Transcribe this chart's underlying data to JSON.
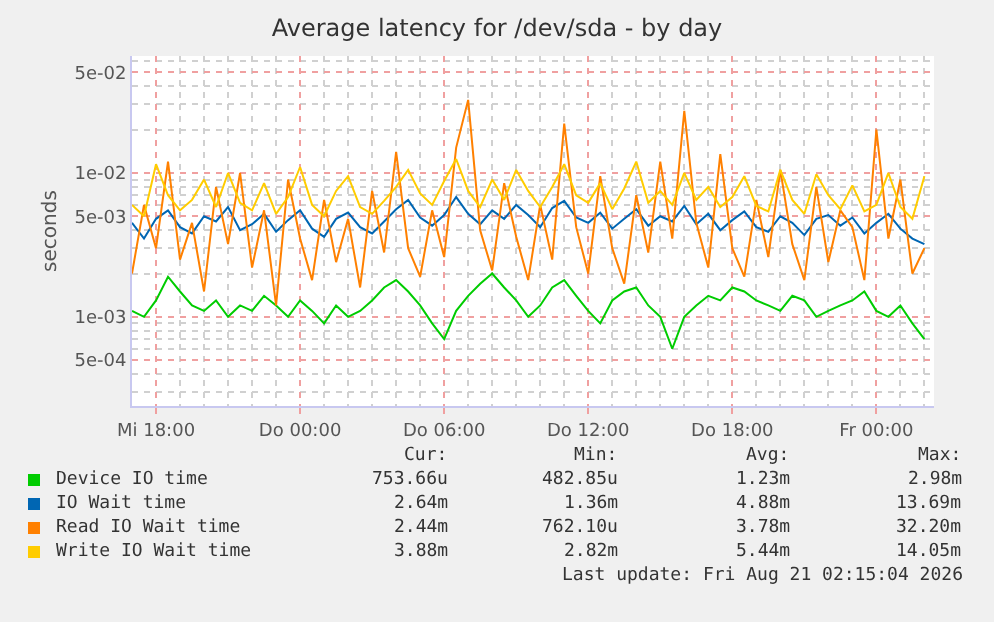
{
  "chart_data": {
    "type": "line",
    "title": "Average latency for /dev/sda - by day",
    "ylabel": "seconds",
    "log": "y",
    "grid": true,
    "legend": "bottom left",
    "marker": "none",
    "line_style": "solid",
    "x": [
      "2026-08-19T17:00",
      "2026-08-19T17:30",
      "2026-08-19T18:00",
      "2026-08-19T18:30",
      "2026-08-19T19:00",
      "2026-08-19T19:30",
      "2026-08-19T20:00",
      "2026-08-19T20:30",
      "2026-08-19T21:00",
      "2026-08-19T21:30",
      "2026-08-19T22:00",
      "2026-08-19T22:30",
      "2026-08-19T23:00",
      "2026-08-19T23:30",
      "2026-08-20T00:00",
      "2026-08-20T00:30",
      "2026-08-20T01:00",
      "2026-08-20T01:30",
      "2026-08-20T02:00",
      "2026-08-20T02:30",
      "2026-08-20T03:00",
      "2026-08-20T03:30",
      "2026-08-20T04:00",
      "2026-08-20T04:30",
      "2026-08-20T05:00",
      "2026-08-20T05:30",
      "2026-08-20T06:00",
      "2026-08-20T06:30",
      "2026-08-20T07:00",
      "2026-08-20T07:30",
      "2026-08-20T08:00",
      "2026-08-20T08:30",
      "2026-08-20T09:00",
      "2026-08-20T09:30",
      "2026-08-20T10:00",
      "2026-08-20T10:30",
      "2026-08-20T11:00",
      "2026-08-20T11:30",
      "2026-08-20T12:00",
      "2026-08-20T12:30",
      "2026-08-20T13:00",
      "2026-08-20T13:30",
      "2026-08-20T14:00",
      "2026-08-20T14:30",
      "2026-08-20T15:00",
      "2026-08-20T15:30",
      "2026-08-20T16:00",
      "2026-08-20T16:30",
      "2026-08-20T17:00",
      "2026-08-20T17:30",
      "2026-08-20T18:00",
      "2026-08-20T18:30",
      "2026-08-20T19:00",
      "2026-08-20T19:30",
      "2026-08-20T20:00",
      "2026-08-20T20:30",
      "2026-08-20T21:00",
      "2026-08-20T21:30",
      "2026-08-20T22:00",
      "2026-08-20T22:30",
      "2026-08-20T23:00",
      "2026-08-20T23:30",
      "2026-08-21T00:00",
      "2026-08-21T00:30",
      "2026-08-21T01:00",
      "2026-08-21T01:30",
      "2026-08-21T02:00"
    ],
    "xlim": [
      "2026-08-19T17:00",
      "2026-08-21T02:24"
    ],
    "xticks": [
      {
        "value": "2026-08-19T18:00",
        "label": "Mi 18:00"
      },
      {
        "value": "2026-08-20T00:00",
        "label": "Do 00:00"
      },
      {
        "value": "2026-08-20T06:00",
        "label": "Do 06:00"
      },
      {
        "value": "2026-08-20T12:00",
        "label": "Do 12:00"
      },
      {
        "value": "2026-08-20T18:00",
        "label": "Do 18:00"
      },
      {
        "value": "2026-08-21T00:00",
        "label": "Fr 00:00"
      }
    ],
    "ylim": [
      0.00024,
      0.065
    ],
    "yticks": [
      {
        "value": 0.0005,
        "label": "5e-04"
      },
      {
        "value": 0.001,
        "label": "1e-03"
      },
      {
        "value": 0.005,
        "label": "5e-03"
      },
      {
        "value": 0.01,
        "label": "1e-02"
      },
      {
        "value": 0.05,
        "label": "5e-02"
      }
    ],
    "series": [
      {
        "name": "Device IO time",
        "color": "#00cc00",
        "values": [
          0.0011,
          0.001,
          0.0013,
          0.0019,
          0.0015,
          0.0012,
          0.0011,
          0.0013,
          0.001,
          0.0012,
          0.0011,
          0.0014,
          0.0012,
          0.001,
          0.0013,
          0.0011,
          0.0009,
          0.0012,
          0.001,
          0.0011,
          0.0013,
          0.0016,
          0.0018,
          0.0015,
          0.0012,
          0.0009,
          0.0007,
          0.0011,
          0.0014,
          0.0017,
          0.002,
          0.0016,
          0.0013,
          0.001,
          0.0012,
          0.0016,
          0.0018,
          0.0014,
          0.0011,
          0.0009,
          0.0013,
          0.0015,
          0.0016,
          0.0012,
          0.001,
          0.0006,
          0.001,
          0.0012,
          0.0014,
          0.0013,
          0.0016,
          0.0015,
          0.0013,
          0.0012,
          0.0011,
          0.0014,
          0.0013,
          0.001,
          0.0011,
          0.0012,
          0.0013,
          0.0015,
          0.0011,
          0.001,
          0.0012,
          0.0009,
          0.0007
        ]
      },
      {
        "name": "IO Wait time",
        "color": "#0066b3",
        "values": [
          0.0045,
          0.0035,
          0.0048,
          0.0055,
          0.0042,
          0.0038,
          0.005,
          0.0046,
          0.0058,
          0.004,
          0.0044,
          0.0052,
          0.0039,
          0.0047,
          0.0055,
          0.0041,
          0.0036,
          0.0048,
          0.0053,
          0.0042,
          0.0038,
          0.0046,
          0.0056,
          0.0065,
          0.0049,
          0.0043,
          0.0051,
          0.0068,
          0.0052,
          0.0044,
          0.0055,
          0.0048,
          0.006,
          0.0051,
          0.0042,
          0.0057,
          0.0064,
          0.0049,
          0.0045,
          0.0053,
          0.0041,
          0.0048,
          0.0056,
          0.0043,
          0.005,
          0.0046,
          0.0059,
          0.0044,
          0.0052,
          0.004,
          0.0047,
          0.0054,
          0.0042,
          0.0039,
          0.005,
          0.0045,
          0.0037,
          0.0048,
          0.0051,
          0.0043,
          0.0049,
          0.0038,
          0.0045,
          0.0052,
          0.0041,
          0.0035,
          0.0032
        ]
      },
      {
        "name": "Read IO Wait time",
        "color": "#ff8000",
        "values": [
          0.002,
          0.006,
          0.003,
          0.012,
          0.0025,
          0.0045,
          0.0015,
          0.008,
          0.0032,
          0.01,
          0.0022,
          0.0055,
          0.0012,
          0.009,
          0.0035,
          0.0018,
          0.0065,
          0.0024,
          0.0048,
          0.0016,
          0.0075,
          0.0028,
          0.014,
          0.003,
          0.0019,
          0.0055,
          0.0026,
          0.015,
          0.0322,
          0.004,
          0.0021,
          0.0085,
          0.0036,
          0.0018,
          0.006,
          0.0025,
          0.022,
          0.0042,
          0.002,
          0.0095,
          0.003,
          0.0017,
          0.007,
          0.0028,
          0.012,
          0.0035,
          0.027,
          0.0045,
          0.0022,
          0.0135,
          0.003,
          0.0019,
          0.0065,
          0.0026,
          0.0105,
          0.0032,
          0.0018,
          0.008,
          0.0024,
          0.0055,
          0.0042,
          0.0018,
          0.02,
          0.0035,
          0.009,
          0.002,
          0.003
        ]
      },
      {
        "name": "Write IO Wait time",
        "color": "#ffcc00",
        "values": [
          0.006,
          0.005,
          0.0115,
          0.007,
          0.0055,
          0.0065,
          0.009,
          0.0058,
          0.01,
          0.0062,
          0.0055,
          0.0085,
          0.0052,
          0.0068,
          0.011,
          0.006,
          0.005,
          0.0075,
          0.0095,
          0.0058,
          0.0052,
          0.0064,
          0.008,
          0.0105,
          0.0072,
          0.006,
          0.0088,
          0.0125,
          0.0075,
          0.0058,
          0.009,
          0.0065,
          0.0105,
          0.0075,
          0.0058,
          0.008,
          0.0115,
          0.007,
          0.0062,
          0.0085,
          0.0056,
          0.0078,
          0.012,
          0.0062,
          0.0075,
          0.006,
          0.01,
          0.0065,
          0.008,
          0.0058,
          0.0068,
          0.0095,
          0.0059,
          0.0054,
          0.0105,
          0.0065,
          0.0052,
          0.0098,
          0.007,
          0.0056,
          0.0082,
          0.0054,
          0.006,
          0.01,
          0.0058,
          0.0048,
          0.0095
        ]
      }
    ],
    "annotations": [
      "Cur:",
      "Min:",
      "Avg:",
      "Max:",
      "753.66u",
      "482.85u",
      "1.23m",
      "2.98m",
      "2.64m",
      "1.36m",
      "4.88m",
      "13.69m",
      "2.44m",
      "762.10u",
      "3.78m",
      "32.20m",
      "3.88m",
      "2.82m",
      "5.44m",
      "14.05m",
      "Last update: Fri Aug 21 02:15:04 2026"
    ]
  }
}
